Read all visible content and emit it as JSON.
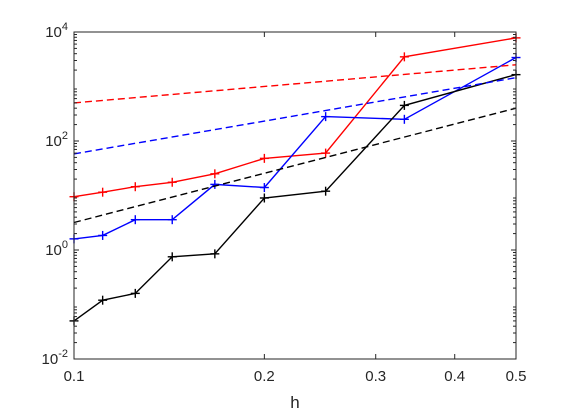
{
  "chart_data": {
    "type": "line",
    "title": "",
    "xlabel": "h",
    "ylabel": "",
    "xscale": "log",
    "yscale": "log",
    "xlim": [
      0.1,
      0.5
    ],
    "ylim": [
      0.01,
      10000
    ],
    "grid": false,
    "legend": "none",
    "x_ticks": [
      {
        "value": 0.1,
        "label": "0.1"
      },
      {
        "value": 0.2,
        "label": "0.2"
      },
      {
        "value": 0.3,
        "label": "0.3"
      },
      {
        "value": 0.4,
        "label": "0.4"
      },
      {
        "value": 0.5,
        "label": "0.5"
      }
    ],
    "y_ticks": [
      {
        "value": 0.01,
        "base": "10",
        "exp": "-2"
      },
      {
        "value": 1,
        "base": "10",
        "exp": "0"
      },
      {
        "value": 100,
        "base": "10",
        "exp": "2"
      },
      {
        "value": 10000,
        "base": "10",
        "exp": "4"
      }
    ],
    "x": [
      0.1,
      0.111,
      0.125,
      0.143,
      0.167,
      0.2,
      0.25,
      0.333,
      0.5
    ],
    "series": [
      {
        "color": "#ff0000",
        "style": "solid",
        "marker": "+",
        "values": [
          9.5,
          11.5,
          14.5,
          17.5,
          25,
          48,
          60,
          3500,
          7800
        ]
      },
      {
        "color": "#0000ff",
        "style": "solid",
        "marker": "+",
        "values": [
          1.6,
          1.85,
          3.6,
          3.6,
          16,
          14,
          280,
          250,
          3400
        ]
      },
      {
        "color": "#000000",
        "style": "solid",
        "marker": "+",
        "values": [
          0.05,
          0.12,
          0.16,
          0.75,
          0.85,
          9,
          12,
          450,
          1650
        ]
      },
      {
        "color": "#ff0000",
        "style": "dashed",
        "x": [
          0.1,
          0.5
        ],
        "values": [
          500,
          2500
        ]
      },
      {
        "color": "#0000ff",
        "style": "dashed",
        "x": [
          0.1,
          0.5
        ],
        "values": [
          58,
          1450
        ]
      },
      {
        "color": "#000000",
        "style": "dashed",
        "x": [
          0.1,
          0.5
        ],
        "values": [
          3.2,
          400
        ]
      }
    ]
  }
}
